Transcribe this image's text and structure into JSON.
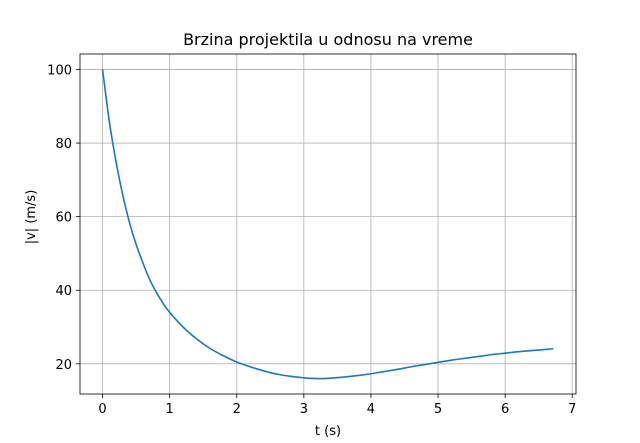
{
  "chart_data": {
    "type": "line",
    "title": "Brzina projektila u odnosu na vreme",
    "xlabel": "t (s)",
    "ylabel": "|v| (m/s)",
    "xlim": [
      -0.336,
      7.056
    ],
    "ylim": [
      11.8,
      104.2
    ],
    "xticks": [
      0,
      1,
      2,
      3,
      4,
      5,
      6,
      7
    ],
    "yticks": [
      20,
      40,
      60,
      80,
      100
    ],
    "grid": true,
    "line_color": "#1f77b4",
    "series": [
      {
        "x": [
          0,
          0.1,
          0.2,
          0.3,
          0.4,
          0.5,
          0.6,
          0.7,
          0.8,
          0.9,
          1.0,
          1.2,
          1.4,
          1.6,
          1.8,
          2.0,
          2.2,
          2.4,
          2.6,
          2.8,
          3.0,
          3.1,
          3.2,
          3.3,
          3.4,
          3.6,
          3.8,
          4.0,
          4.2,
          4.4,
          4.6,
          4.8,
          5.0,
          5.2,
          5.4,
          5.6,
          5.8,
          6.0,
          6.2,
          6.4,
          6.6,
          6.72
        ],
        "values": [
          100,
          86,
          75,
          66,
          58.5,
          52.5,
          47.5,
          43,
          39.5,
          36.5,
          34,
          30,
          26.8,
          24.2,
          22.2,
          20.5,
          19.2,
          18.1,
          17.2,
          16.6,
          16.2,
          16.05,
          16,
          16,
          16.1,
          16.4,
          16.8,
          17.3,
          17.9,
          18.5,
          19.2,
          19.8,
          20.4,
          21,
          21.5,
          22,
          22.5,
          22.9,
          23.3,
          23.6,
          23.9,
          24.1
        ]
      }
    ]
  }
}
